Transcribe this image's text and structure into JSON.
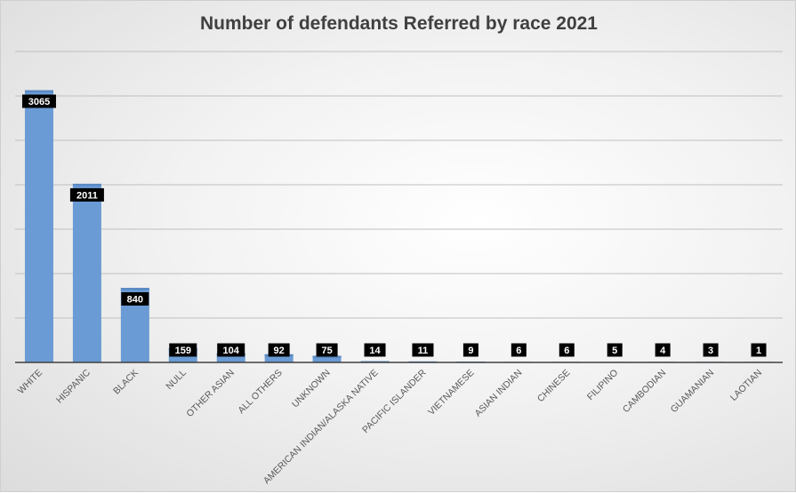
{
  "chart_data": {
    "type": "bar",
    "title": "Number of defendants Referred by race 2021",
    "xlabel": "",
    "ylabel": "",
    "ylim": [
      0,
      3500
    ],
    "grid": true,
    "legend": "none",
    "categories": [
      "WHITE",
      "HISPANIC",
      "BLACK",
      "NULL",
      "OTHER ASIAN",
      "ALL OTHERS",
      "UNKNOWN",
      "AMERICAN INDIAN/ALASKA NATIVE",
      "PACIFIC ISLANDER",
      "VIETNAMESE",
      "ASIAN INDIAN",
      "CHINESE",
      "FILIPINO",
      "CAMBODIAN",
      "GUAMANIAN",
      "LAOTIAN"
    ],
    "values": [
      3065,
      2011,
      840,
      159,
      104,
      92,
      75,
      14,
      11,
      9,
      6,
      6,
      5,
      4,
      3,
      1
    ]
  },
  "colors": {
    "bar": "#6a9bd4",
    "bar_top": "#5b8ac4",
    "label_bg": "#000000",
    "label_text": "#ffffff",
    "grid": "#bfbfbf",
    "axis": "#404040"
  }
}
